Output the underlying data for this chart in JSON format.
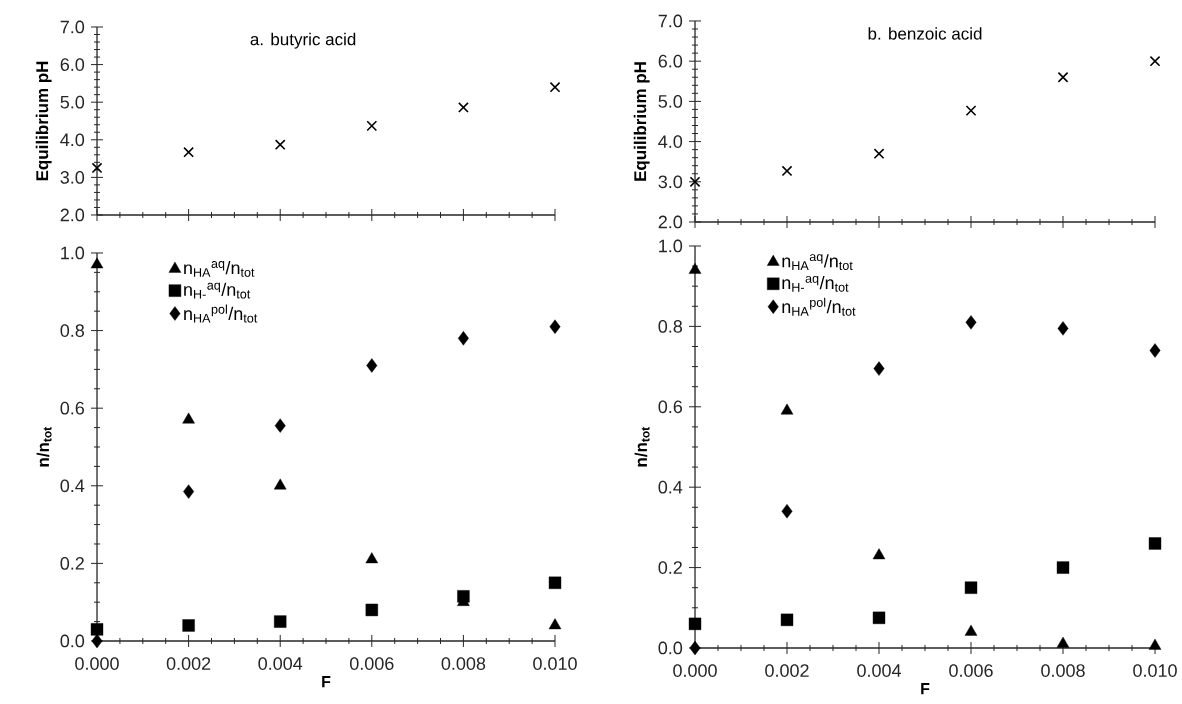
{
  "chart_data": [
    {
      "type": "scatter",
      "title": "a. butyric acid",
      "ylabel": "Equilibrium pH",
      "x": [
        0,
        0.002,
        0.004,
        0.006,
        0.008,
        0.01
      ],
      "series": [
        {
          "color": "#000000",
          "marker": "cross",
          "values": [
            3.25,
            3.67,
            3.87,
            4.37,
            4.86,
            5.4
          ]
        }
      ],
      "xlim": [
        0,
        0.01
      ],
      "ylim": [
        2,
        7
      ],
      "tick_labels": "y",
      "xticks": [
        {
          "value": 0,
          "label": null
        },
        {
          "value": 0.002,
          "label": null
        },
        {
          "value": 0.004,
          "label": null
        },
        {
          "value": 0.006,
          "label": null
        },
        {
          "value": 0.008,
          "label": null
        },
        {
          "value": 0.01,
          "label": null
        }
      ],
      "yticks": [
        {
          "value": 2,
          "label": "2.0"
        },
        {
          "value": 3,
          "label": "3.0"
        },
        {
          "value": 4,
          "label": "4.0"
        },
        {
          "value": 5,
          "label": "5.0"
        },
        {
          "value": 6,
          "label": "6.0"
        },
        {
          "value": 7,
          "label": "7.0"
        }
      ]
    },
    {
      "type": "scatter",
      "title": "b. benzoic acid",
      "ylabel": "Equilibrium pH",
      "x": [
        0,
        0.002,
        0.004,
        0.006,
        0.008,
        0.01
      ],
      "series": [
        {
          "color": "#000000",
          "marker": "cross",
          "values": [
            3.0,
            3.27,
            3.7,
            4.77,
            5.6,
            6.0
          ]
        }
      ],
      "xlim": [
        0,
        0.01
      ],
      "ylim": [
        2,
        7
      ],
      "tick_labels": "y",
      "xticks": [
        {
          "value": 0,
          "label": null
        },
        {
          "value": 0.002,
          "label": null
        },
        {
          "value": 0.004,
          "label": null
        },
        {
          "value": 0.006,
          "label": null
        },
        {
          "value": 0.008,
          "label": null
        },
        {
          "value": 0.01,
          "label": null
        }
      ],
      "yticks": [
        {
          "value": 2,
          "label": "2.0"
        },
        {
          "value": 3,
          "label": "3.0"
        },
        {
          "value": 4,
          "label": "4.0"
        },
        {
          "value": 5,
          "label": "5.0"
        },
        {
          "value": 6,
          "label": "6.0"
        },
        {
          "value": 7,
          "label": "7.0"
        }
      ]
    },
    {
      "type": "scatter",
      "xlabel": "F",
      "ylabel": "n/n$_{tot}$",
      "x": [
        0,
        0.002,
        0.004,
        0.006,
        0.008,
        0.01
      ],
      "legend": "top left",
      "series": [
        {
          "name": "n$_{HA}$$^{aq}$/n$_{tot}$",
          "color": "#000000",
          "marker": "triangle",
          "values": [
            0.97,
            0.57,
            0.4,
            0.21,
            0.1,
            0.04
          ]
        },
        {
          "name": "n$_{H-}$$^{aq}$/n$_{tot}$",
          "color": "#000000",
          "marker": "square",
          "values": [
            0.03,
            0.04,
            0.05,
            0.08,
            0.115,
            0.15
          ]
        },
        {
          "name": "n$_{HA}$$^{pol}$/n$_{tot}$",
          "color": "#000000",
          "marker": "diamond",
          "values": [
            0.0,
            0.385,
            0.555,
            0.71,
            0.78,
            0.81
          ]
        }
      ],
      "xlim": [
        0,
        0.01
      ],
      "ylim": [
        0,
        1
      ],
      "xticks": [
        {
          "value": 0,
          "label": "0.000"
        },
        {
          "value": 0.002,
          "label": "0.002"
        },
        {
          "value": 0.004,
          "label": "0.004"
        },
        {
          "value": 0.006,
          "label": "0.006"
        },
        {
          "value": 0.008,
          "label": "0.008"
        },
        {
          "value": 0.01,
          "label": "0.010"
        }
      ],
      "yticks": [
        {
          "value": 0,
          "label": "0.0"
        },
        {
          "value": 0.2,
          "label": "0.2"
        },
        {
          "value": 0.4,
          "label": "0.4"
        },
        {
          "value": 0.6,
          "label": "0.6"
        },
        {
          "value": 0.8,
          "label": "0.8"
        },
        {
          "value": 1,
          "label": "1.0"
        }
      ]
    },
    {
      "type": "scatter",
      "xlabel": "F",
      "ylabel": "n/n$_{tot}$",
      "x": [
        0,
        0.002,
        0.004,
        0.006,
        0.008,
        0.01
      ],
      "legend": "top left",
      "series": [
        {
          "name": "n$_{HA}$$^{aq}$/n$_{tot}$",
          "color": "#000000",
          "marker": "triangle",
          "values": [
            0.94,
            0.59,
            0.23,
            0.04,
            0.01,
            0.005
          ]
        },
        {
          "name": "n$_{H-}$$^{aq}$/n$_{tot}$",
          "color": "#000000",
          "marker": "square",
          "values": [
            0.06,
            0.07,
            0.075,
            0.15,
            0.2,
            0.26
          ]
        },
        {
          "name": "n$_{HA}$$^{pol}$/n$_{tot}$",
          "color": "#000000",
          "marker": "diamond",
          "values": [
            0.0,
            0.34,
            0.695,
            0.81,
            0.795,
            0.74
          ]
        }
      ],
      "xlim": [
        0,
        0.01
      ],
      "ylim": [
        0,
        1
      ],
      "xticks": [
        {
          "value": 0,
          "label": "0.000"
        },
        {
          "value": 0.002,
          "label": "0.002"
        },
        {
          "value": 0.004,
          "label": "0.004"
        },
        {
          "value": 0.006,
          "label": "0.006"
        },
        {
          "value": 0.008,
          "label": "0.008"
        },
        {
          "value": 0.01,
          "label": "0.010"
        }
      ],
      "yticks": [
        {
          "value": 0,
          "label": "0.0"
        },
        {
          "value": 0.2,
          "label": "0.2"
        },
        {
          "value": 0.4,
          "label": "0.4"
        },
        {
          "value": 0.6,
          "label": "0.6"
        },
        {
          "value": 0.8,
          "label": "0.8"
        },
        {
          "value": 1,
          "label": "1.0"
        }
      ]
    }
  ]
}
